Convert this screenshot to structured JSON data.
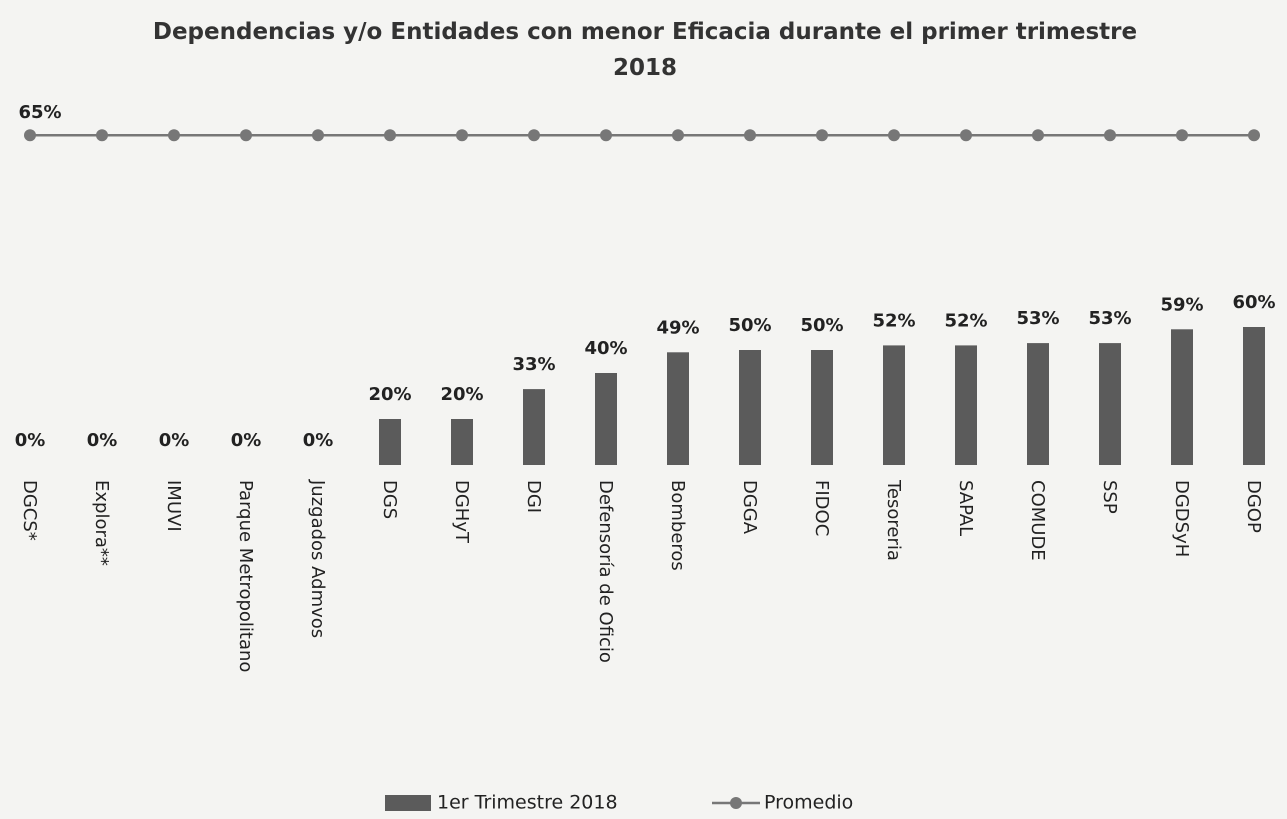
{
  "chart_data": {
    "type": "bar",
    "title": "Dependencias y/o Entidades con menor Eficacia durante el primer trimestre 2018",
    "categories": [
      "DGCS*",
      "Explora**",
      "IMUVI",
      "Parque Metropolitano",
      "Juzgados Admvos",
      "DGS",
      "DGHyT",
      "DGI",
      "Defensoría de Oficio",
      "Bomberos",
      "DGGA",
      "FIDOC",
      "Tesoreria",
      "SAPAL",
      "COMUDE",
      "SSP",
      "DGDSyH",
      "DGOP"
    ],
    "series": [
      {
        "name": "1er Trimestre 2018",
        "type": "bar",
        "color": "#5b5b5b",
        "values": [
          0,
          0,
          0,
          0,
          0,
          20,
          20,
          33,
          40,
          49,
          50,
          50,
          52,
          52,
          53,
          53,
          59,
          60
        ],
        "value_labels": [
          "0%",
          "0%",
          "0%",
          "0%",
          "0%",
          "20%",
          "20%",
          "33%",
          "40%",
          "49%",
          "50%",
          "50%",
          "52%",
          "52%",
          "53%",
          "53%",
          "59%",
          "60%"
        ]
      },
      {
        "name": "Promedio",
        "type": "line",
        "axis": "y2",
        "color": "#777777",
        "values": [
          65,
          65,
          65,
          65,
          65,
          65,
          65,
          65,
          65,
          65,
          65,
          65,
          65,
          65,
          65,
          65,
          65,
          65
        ],
        "value_labels": [
          "65%",
          null,
          null,
          null,
          null,
          null,
          null,
          null,
          null,
          null,
          null,
          null,
          null,
          null,
          null,
          null,
          null,
          null
        ]
      }
    ],
    "ylim": [
      0,
      150
    ],
    "y2lim": [
      0,
      68
    ],
    "legend": "bottom"
  }
}
